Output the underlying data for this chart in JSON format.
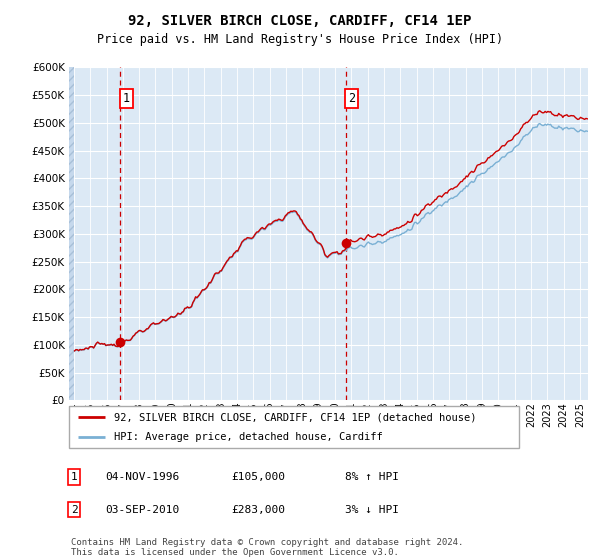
{
  "title1": "92, SILVER BIRCH CLOSE, CARDIFF, CF14 1EP",
  "title2": "Price paid vs. HM Land Registry's House Price Index (HPI)",
  "legend_line1": "92, SILVER BIRCH CLOSE, CARDIFF, CF14 1EP (detached house)",
  "legend_line2": "HPI: Average price, detached house, Cardiff",
  "annotation1_date": "04-NOV-1996",
  "annotation1_price": "£105,000",
  "annotation1_hpi": "8% ↑ HPI",
  "annotation2_date": "03-SEP-2010",
  "annotation2_price": "£283,000",
  "annotation2_hpi": "3% ↓ HPI",
  "footer": "Contains HM Land Registry data © Crown copyright and database right 2024.\nThis data is licensed under the Open Government Licence v3.0.",
  "ylim": [
    0,
    600000
  ],
  "yticks": [
    0,
    50000,
    100000,
    150000,
    200000,
    250000,
    300000,
    350000,
    400000,
    450000,
    500000,
    550000,
    600000
  ],
  "sale1_year": 1996.84,
  "sale1_value": 105000,
  "sale2_year": 2010.67,
  "sale2_value": 283000,
  "xstart": 1993.7,
  "xend": 2025.5,
  "background_color": "#dce9f5",
  "grid_color": "#ffffff",
  "red_line_color": "#cc0000",
  "blue_line_color": "#7ab0d4"
}
